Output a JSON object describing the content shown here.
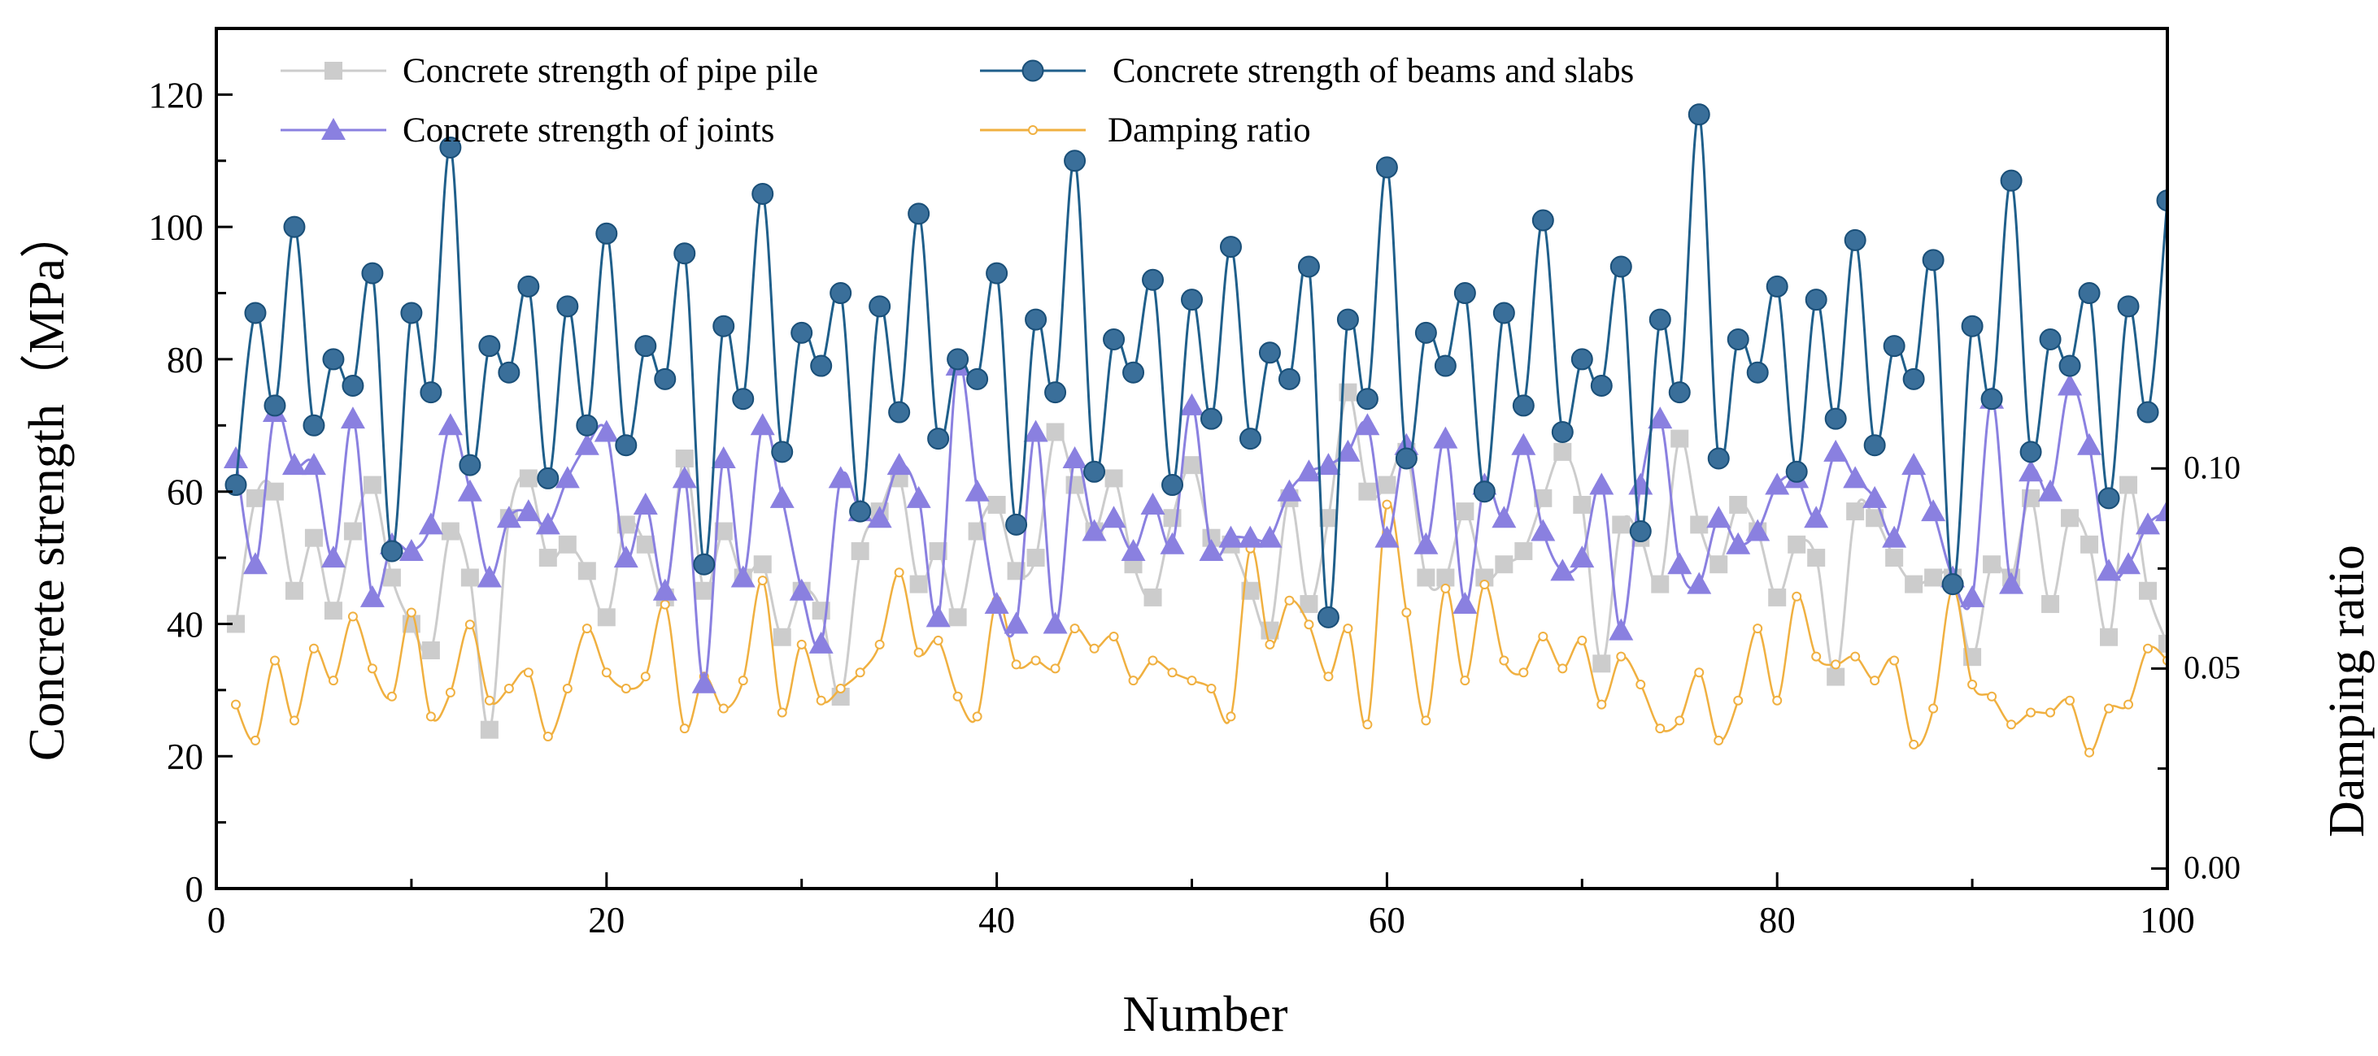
{
  "chart_data": {
    "type": "line",
    "title": "",
    "xlabel": "Number",
    "ylabel": "Concrete strength（MPa）",
    "y2label": "Damping ratio",
    "xlim": [
      0,
      100
    ],
    "ylim": [
      0,
      130
    ],
    "y2lim": [
      -0.005,
      0.21
    ],
    "x_ticks": [
      0,
      20,
      40,
      60,
      80,
      100
    ],
    "y_ticks": [
      0,
      20,
      40,
      60,
      80,
      100,
      120
    ],
    "y2_ticks": [
      0.0,
      0.05,
      0.1
    ],
    "y2_tick_labels": [
      "0.00",
      "0.05",
      "0.10"
    ],
    "legend_position": "top-left",
    "x": [
      1,
      2,
      3,
      4,
      5,
      6,
      7,
      8,
      9,
      10,
      11,
      12,
      13,
      14,
      15,
      16,
      17,
      18,
      19,
      20,
      21,
      22,
      23,
      24,
      25,
      26,
      27,
      28,
      29,
      30,
      31,
      32,
      33,
      34,
      35,
      36,
      37,
      38,
      39,
      40,
      41,
      42,
      43,
      44,
      45,
      46,
      47,
      48,
      49,
      50,
      51,
      52,
      53,
      54,
      55,
      56,
      57,
      58,
      59,
      60,
      61,
      62,
      63,
      64,
      65,
      66,
      67,
      68,
      69,
      70,
      71,
      72,
      73,
      74,
      75,
      76,
      77,
      78,
      79,
      80,
      81,
      82,
      83,
      84,
      85,
      86,
      87,
      88,
      89,
      90,
      91,
      92,
      93,
      94,
      95,
      96,
      97,
      98,
      99,
      100
    ],
    "series": [
      {
        "name": "Concrete strength of pipe pile",
        "axis": "left",
        "color": "#cccccc",
        "marker": "square",
        "values": [
          40,
          59,
          60,
          45,
          53,
          42,
          54,
          61,
          47,
          40,
          36,
          54,
          47,
          24,
          56,
          62,
          50,
          52,
          48,
          41,
          55,
          52,
          44,
          65,
          45,
          54,
          47,
          49,
          38,
          45,
          42,
          29,
          51,
          57,
          62,
          46,
          51,
          41,
          54,
          58,
          48,
          50,
          69,
          61,
          54,
          62,
          49,
          44,
          56,
          64,
          53,
          52,
          45,
          39,
          59,
          43,
          56,
          75,
          60,
          61,
          66,
          47,
          47,
          57,
          47,
          49,
          51,
          59,
          66,
          58,
          34,
          55,
          53,
          46,
          68,
          55,
          49,
          58,
          54,
          44,
          52,
          50,
          32,
          57,
          56,
          50,
          46,
          47,
          47,
          35,
          49,
          47,
          59,
          43,
          56,
          52,
          38,
          61,
          45,
          37
        ]
      },
      {
        "name": "Concrete strength of beams and slabs",
        "axis": "left",
        "color": "#1f5f8b",
        "marker": "circle",
        "values": [
          61,
          87,
          73,
          100,
          70,
          80,
          76,
          93,
          51,
          87,
          75,
          112,
          64,
          82,
          78,
          91,
          62,
          88,
          70,
          99,
          67,
          82,
          77,
          96,
          49,
          85,
          74,
          105,
          66,
          84,
          79,
          90,
          57,
          88,
          72,
          102,
          68,
          80,
          77,
          93,
          55,
          86,
          75,
          110,
          63,
          83,
          78,
          92,
          61,
          89,
          71,
          97,
          68,
          81,
          77,
          94,
          41,
          86,
          74,
          109,
          65,
          84,
          79,
          90,
          60,
          87,
          73,
          101,
          69,
          80,
          76,
          94,
          54,
          86,
          75,
          117,
          65,
          83,
          78,
          91,
          63,
          89,
          71,
          98,
          67,
          82,
          77,
          95,
          46,
          85,
          74,
          107,
          66,
          83,
          79,
          90,
          59,
          88,
          72,
          104
        ]
      },
      {
        "name": "Concrete strength of joints",
        "axis": "left",
        "color": "#8a80e0",
        "marker": "triangle",
        "values": [
          65,
          49,
          72,
          64,
          64,
          50,
          71,
          44,
          52,
          51,
          55,
          70,
          60,
          47,
          56,
          57,
          55,
          62,
          67,
          69,
          50,
          58,
          45,
          62,
          31,
          65,
          47,
          70,
          59,
          45,
          37,
          62,
          57,
          56,
          64,
          59,
          41,
          79,
          60,
          43,
          40,
          69,
          40,
          65,
          54,
          56,
          51,
          58,
          52,
          73,
          51,
          53,
          53,
          53,
          60,
          63,
          64,
          66,
          70,
          53,
          67,
          52,
          68,
          43,
          61,
          56,
          67,
          54,
          48,
          50,
          61,
          39,
          61,
          71,
          49,
          46,
          56,
          52,
          54,
          61,
          62,
          56,
          66,
          62,
          59,
          53,
          64,
          57,
          47,
          44,
          74,
          46,
          63,
          60,
          76,
          67,
          48,
          49,
          55,
          57
        ]
      },
      {
        "name": "Damping ratio",
        "axis": "right",
        "color": "#f0b040",
        "marker": "open-circle",
        "values": [
          0.041,
          0.032,
          0.052,
          0.037,
          0.055,
          0.047,
          0.063,
          0.05,
          0.043,
          0.064,
          0.038,
          0.044,
          0.061,
          0.042,
          0.045,
          0.049,
          0.033,
          0.045,
          0.06,
          0.049,
          0.045,
          0.048,
          0.066,
          0.035,
          0.048,
          0.04,
          0.047,
          0.072,
          0.039,
          0.056,
          0.042,
          0.045,
          0.049,
          0.056,
          0.074,
          0.054,
          0.057,
          0.043,
          0.038,
          0.067,
          0.051,
          0.052,
          0.05,
          0.06,
          0.055,
          0.058,
          0.047,
          0.052,
          0.049,
          0.047,
          0.045,
          0.038,
          0.08,
          0.056,
          0.067,
          0.061,
          0.048,
          0.06,
          0.036,
          0.091,
          0.064,
          0.037,
          0.07,
          0.047,
          0.071,
          0.052,
          0.049,
          0.058,
          0.05,
          0.057,
          0.041,
          0.053,
          0.046,
          0.035,
          0.037,
          0.049,
          0.032,
          0.042,
          0.06,
          0.042,
          0.068,
          0.053,
          0.051,
          0.053,
          0.047,
          0.052,
          0.031,
          0.04,
          0.07,
          0.046,
          0.043,
          0.036,
          0.039,
          0.039,
          0.042,
          0.029,
          0.04,
          0.041,
          0.055,
          0.052
        ]
      }
    ]
  }
}
